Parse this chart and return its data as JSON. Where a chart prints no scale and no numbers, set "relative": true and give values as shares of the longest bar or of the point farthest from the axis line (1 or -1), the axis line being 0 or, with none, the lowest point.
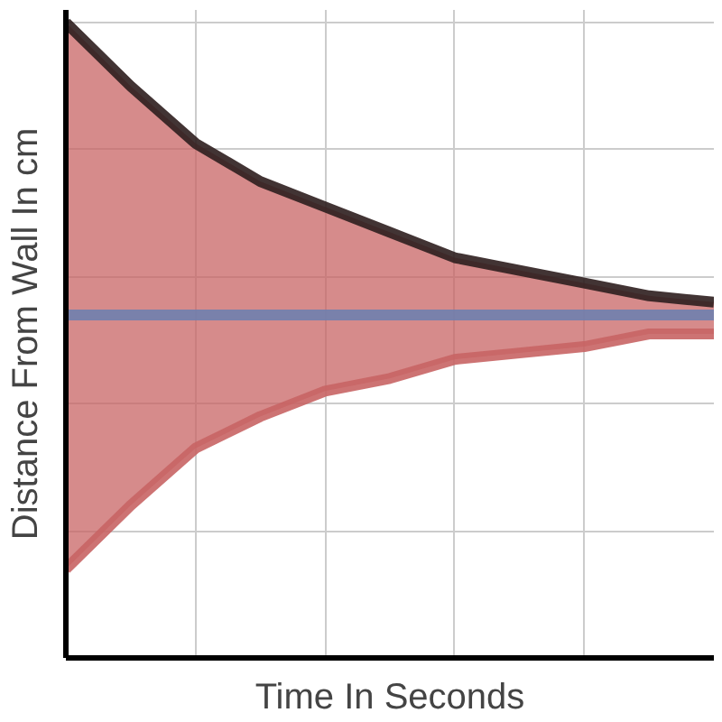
{
  "chart_data": {
    "type": "line",
    "xlabel": "Time In Seconds",
    "ylabel": "Distance From Wall In cm",
    "relative": true,
    "grid": true,
    "categories": [
      null,
      null,
      null,
      null,
      null,
      null,
      null,
      null,
      null,
      null,
      null
    ],
    "series": [
      {
        "color": "#c86464",
        "values": [
          0.14,
          0.24,
          0.33,
          0.38,
          0.42,
          0.44,
          0.47,
          0.48,
          0.49,
          0.51,
          0.51
        ],
        "lower": [
          0.14,
          0.24,
          0.33,
          0.38,
          0.42,
          0.44,
          0.47,
          0.48,
          0.49,
          0.51,
          0.51
        ],
        "upper": [
          1,
          0.9,
          0.81,
          0.75,
          0.71,
          0.67,
          0.63,
          0.61,
          0.59,
          0.57,
          0.56
        ]
      },
      {
        "color": "#2d1e1e",
        "values": [
          1,
          0.9,
          0.81,
          0.75,
          0.71,
          0.67,
          0.63,
          0.61,
          0.59,
          0.57,
          0.56
        ]
      },
      {
        "color": "#6f7fae",
        "values": [
          0.54,
          0.54,
          0.54,
          0.54,
          0.54,
          0.54,
          0.54,
          0.54,
          0.54,
          0.54,
          0.54
        ]
      }
    ]
  }
}
